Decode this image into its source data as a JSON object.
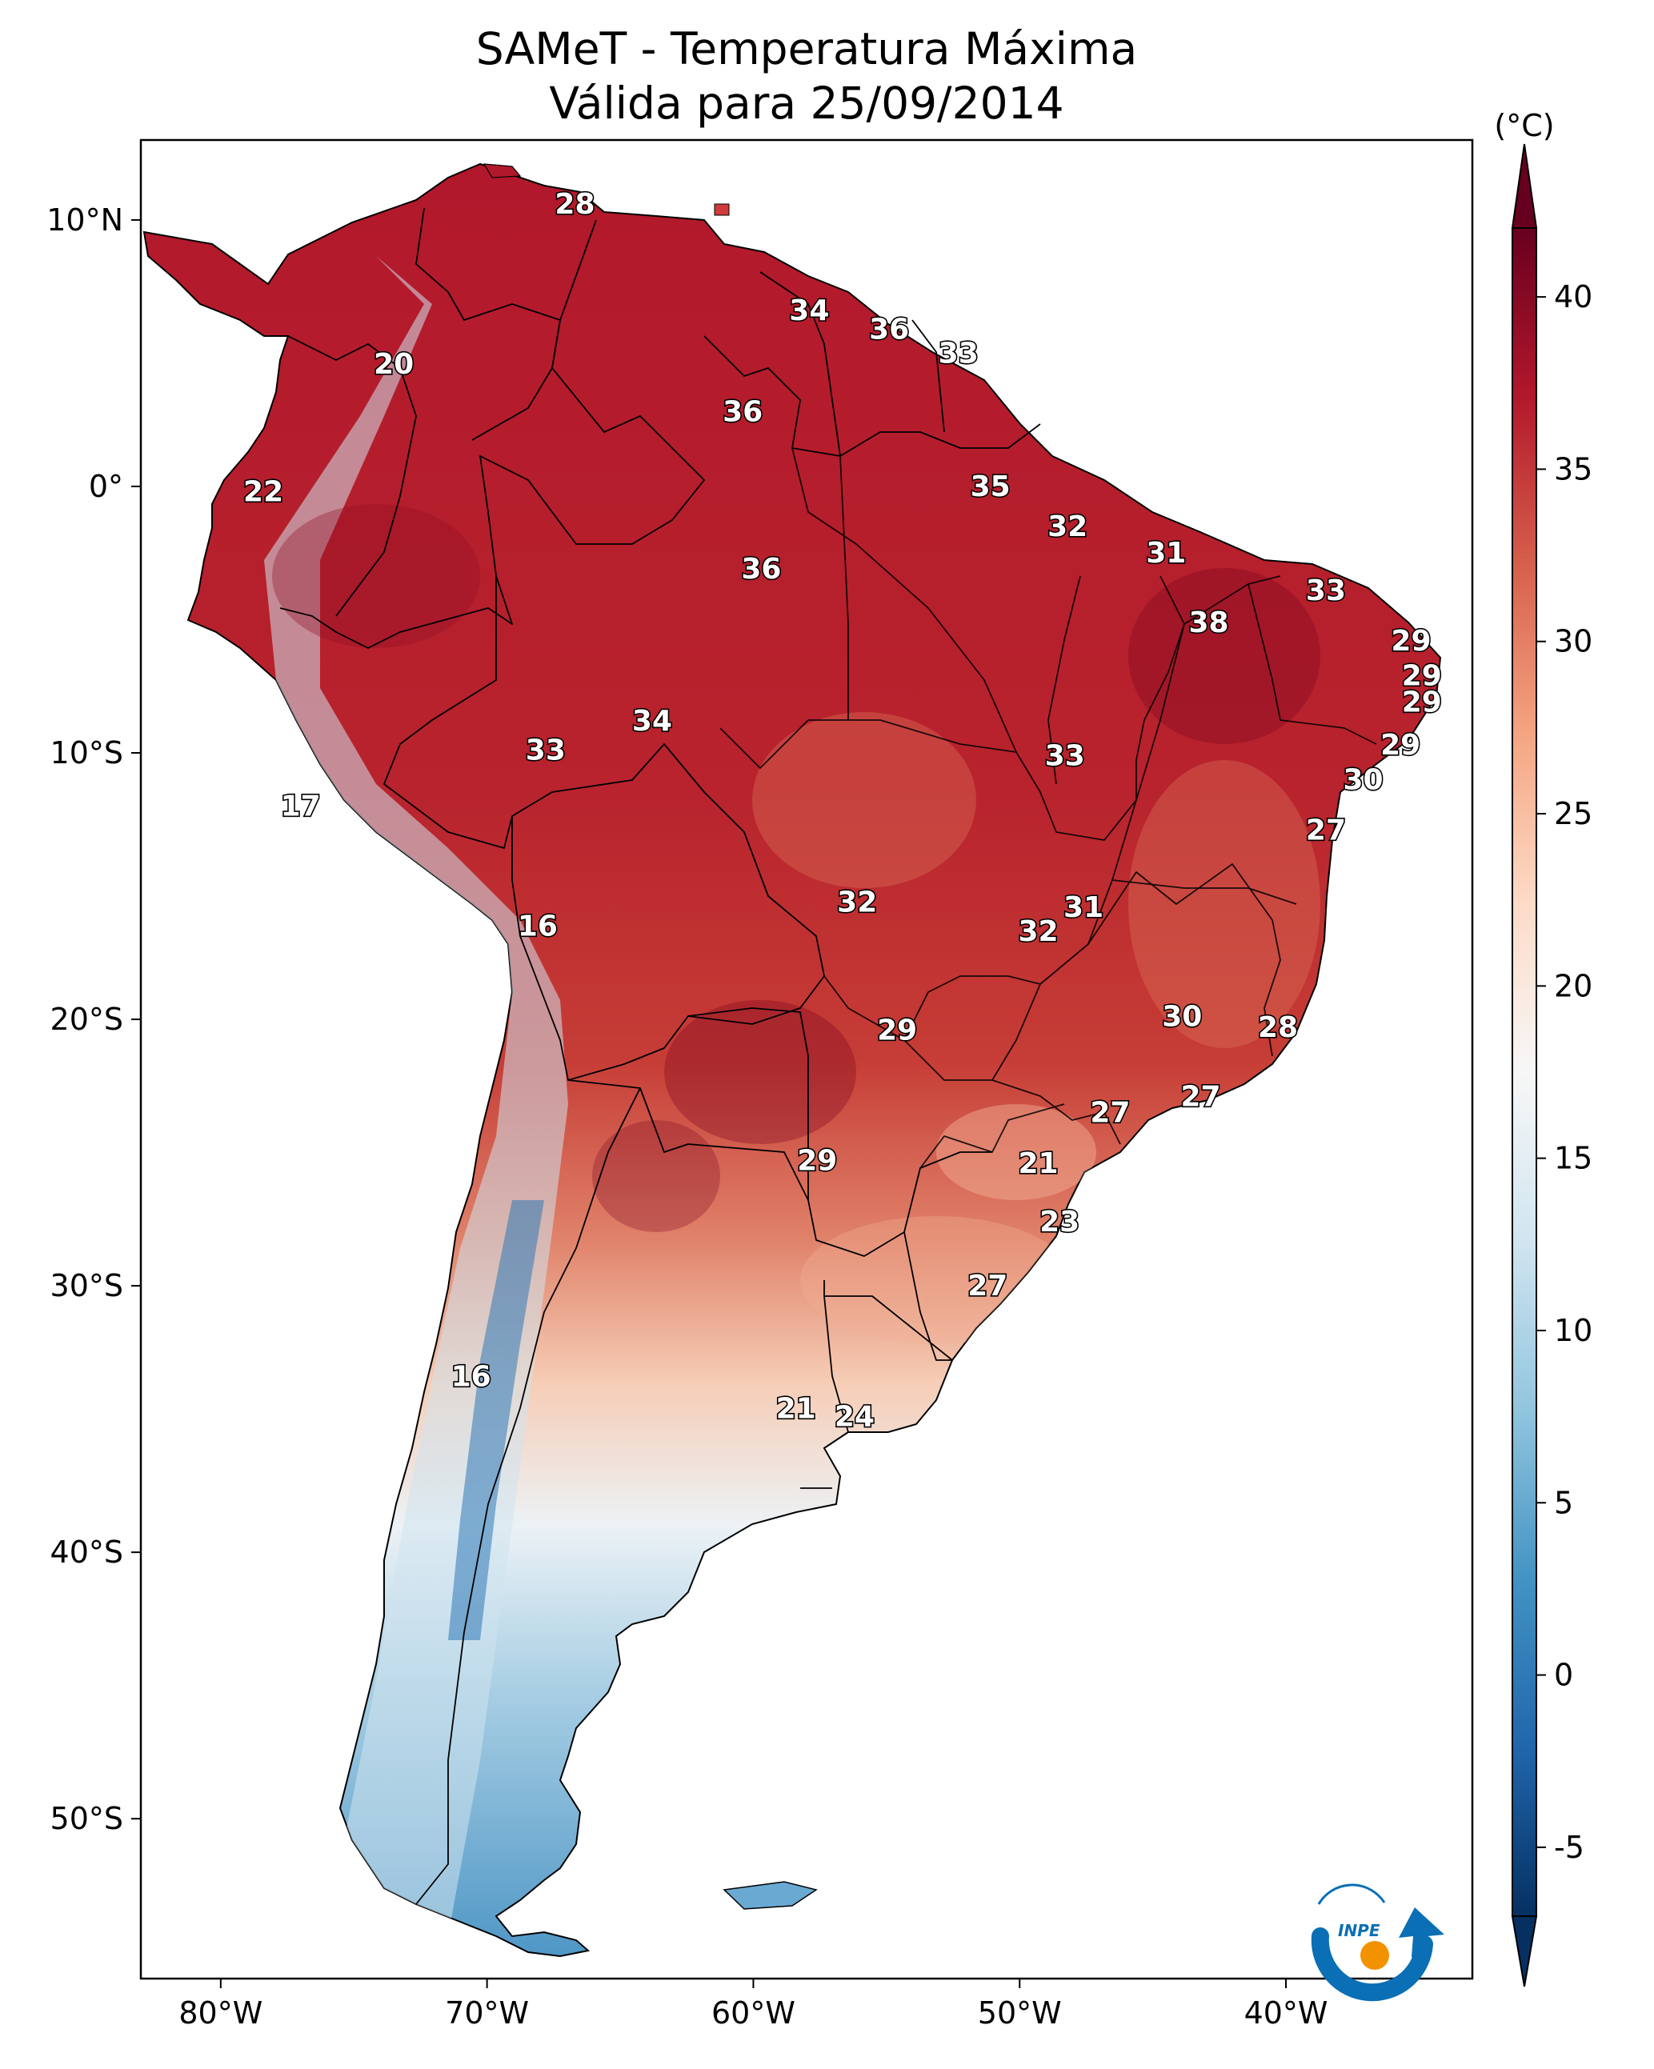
{
  "title": {
    "line1": "SAMeT - Temperatura Máxima",
    "line2": "Válida para 25/09/2014"
  },
  "map": {
    "lon_range": [
      -83,
      -33
    ],
    "lat_range": [
      -56,
      13
    ],
    "lon_ticks": [
      {
        "value": -80,
        "label": "80°W"
      },
      {
        "value": -70,
        "label": "70°W"
      },
      {
        "value": -60,
        "label": "60°W"
      },
      {
        "value": -50,
        "label": "50°W"
      },
      {
        "value": -40,
        "label": "40°W"
      }
    ],
    "lat_ticks": [
      {
        "value": 10,
        "label": "10°N"
      },
      {
        "value": 0,
        "label": "0°"
      },
      {
        "value": -10,
        "label": "10°S"
      },
      {
        "value": -20,
        "label": "20°S"
      },
      {
        "value": -30,
        "label": "30°S"
      },
      {
        "value": -40,
        "label": "40°S"
      },
      {
        "value": -50,
        "label": "50°S"
      }
    ],
    "station_labels": [
      {
        "lon": -66.7,
        "lat": 10.6,
        "value": "28"
      },
      {
        "lon": -57.9,
        "lat": 6.6,
        "value": "34"
      },
      {
        "lon": -54.9,
        "lat": 5.9,
        "value": "36"
      },
      {
        "lon": -52.3,
        "lat": 5.0,
        "value": "33"
      },
      {
        "lon": -73.5,
        "lat": 4.6,
        "value": "20"
      },
      {
        "lon": -60.4,
        "lat": 2.8,
        "value": "36"
      },
      {
        "lon": -51.1,
        "lat": 0.0,
        "value": "35"
      },
      {
        "lon": -78.4,
        "lat": -0.2,
        "value": "22"
      },
      {
        "lon": -48.2,
        "lat": -1.5,
        "value": "32"
      },
      {
        "lon": -44.5,
        "lat": -2.5,
        "value": "31"
      },
      {
        "lon": -59.7,
        "lat": -3.1,
        "value": "36"
      },
      {
        "lon": -38.5,
        "lat": -3.9,
        "value": "33"
      },
      {
        "lon": -42.9,
        "lat": -5.1,
        "value": "38"
      },
      {
        "lon": -35.3,
        "lat": -5.8,
        "value": "29"
      },
      {
        "lon": -34.9,
        "lat": -7.1,
        "value": "29"
      },
      {
        "lon": -34.9,
        "lat": -8.1,
        "value": "29"
      },
      {
        "lon": -63.8,
        "lat": -8.8,
        "value": "34"
      },
      {
        "lon": -35.7,
        "lat": -9.7,
        "value": "29"
      },
      {
        "lon": -67.8,
        "lat": -9.9,
        "value": "33"
      },
      {
        "lon": -48.3,
        "lat": -10.1,
        "value": "33"
      },
      {
        "lon": -37.1,
        "lat": -11.0,
        "value": "30"
      },
      {
        "lon": -77.0,
        "lat": -12.0,
        "value": "17"
      },
      {
        "lon": -38.5,
        "lat": -12.9,
        "value": "27"
      },
      {
        "lon": -56.1,
        "lat": -15.6,
        "value": "32"
      },
      {
        "lon": -47.6,
        "lat": -15.8,
        "value": "31"
      },
      {
        "lon": -49.3,
        "lat": -16.7,
        "value": "32"
      },
      {
        "lon": -68.1,
        "lat": -16.5,
        "value": "16"
      },
      {
        "lon": -43.9,
        "lat": -19.9,
        "value": "30"
      },
      {
        "lon": -54.6,
        "lat": -20.4,
        "value": "29"
      },
      {
        "lon": -40.3,
        "lat": -20.3,
        "value": "28"
      },
      {
        "lon": -43.2,
        "lat": -22.9,
        "value": "27"
      },
      {
        "lon": -46.6,
        "lat": -23.5,
        "value": "27"
      },
      {
        "lon": -57.6,
        "lat": -25.3,
        "value": "29"
      },
      {
        "lon": -49.3,
        "lat": -25.4,
        "value": "21"
      },
      {
        "lon": -48.5,
        "lat": -27.6,
        "value": "23"
      },
      {
        "lon": -51.2,
        "lat": -30.0,
        "value": "27"
      },
      {
        "lon": -70.6,
        "lat": -33.4,
        "value": "16"
      },
      {
        "lon": -58.4,
        "lat": -34.6,
        "value": "21"
      },
      {
        "lon": -56.2,
        "lat": -34.9,
        "value": "24"
      }
    ]
  },
  "colorbar": {
    "unit_label": "(°C)",
    "min": -7,
    "max": 42,
    "ticks": [
      {
        "value": 40,
        "label": "40"
      },
      {
        "value": 35,
        "label": "35"
      },
      {
        "value": 30,
        "label": "30"
      },
      {
        "value": 25,
        "label": "25"
      },
      {
        "value": 20,
        "label": "20"
      },
      {
        "value": 15,
        "label": "15"
      },
      {
        "value": 10,
        "label": "10"
      },
      {
        "value": 5,
        "label": "5"
      },
      {
        "value": 0,
        "label": "0"
      },
      {
        "value": -5,
        "label": "-5"
      }
    ],
    "colors": [
      "#053061",
      "#2166ac",
      "#4393c3",
      "#92c5de",
      "#d1e5f0",
      "#f7f7f7",
      "#fddbc7",
      "#f4a582",
      "#d6604d",
      "#b2182b",
      "#67001f"
    ]
  },
  "logo": {
    "text": "INPE",
    "blue": "#0a6fb5",
    "orange": "#f39200"
  }
}
